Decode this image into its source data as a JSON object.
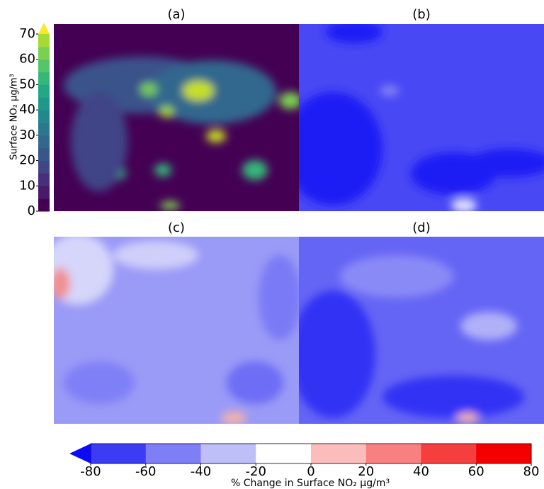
{
  "panels": [
    "(a)",
    "(b)",
    "(c)",
    "(d)"
  ],
  "colorbar_concentration": {
    "label": "Surface NO₂ μg/m³",
    "lim": [
      0,
      70
    ],
    "ticks": [
      0,
      10,
      20,
      30,
      40,
      50,
      60,
      70
    ],
    "colors": [
      "#440154",
      "#481a6c",
      "#472f7d",
      "#414487",
      "#39568c",
      "#31688e",
      "#2a788e",
      "#23888e",
      "#1f988b",
      "#22a884",
      "#35b779",
      "#54c568",
      "#7ad151",
      "#a5db36"
    ],
    "extend_color": "#fde725"
  },
  "colorbar_change": {
    "label": "% Change in Surface NO₂ μg/m³",
    "lim": [
      -80,
      80
    ],
    "ticks": [
      -80,
      -60,
      -40,
      -20,
      0,
      20,
      40,
      60,
      80
    ],
    "colors": [
      "#3c3cf5",
      "#7e7ef6",
      "#bebef8",
      "#ffffff",
      "#fbbcbc",
      "#f88080",
      "#f53e3e",
      "#f50000"
    ],
    "extend_color": "#0b0bf5"
  }
}
